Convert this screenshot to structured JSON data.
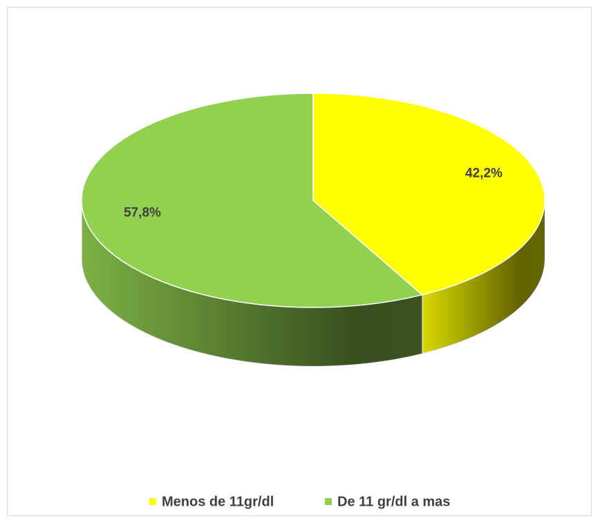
{
  "chart_data": {
    "type": "pie",
    "categories": [
      "Menos de 11gr/dl",
      "De 11 gr/dl a mas"
    ],
    "values": [
      42.2,
      57.8
    ],
    "value_labels": [
      "42,2%",
      "57,8%"
    ],
    "colors": [
      "#ffff00",
      "#92d050"
    ],
    "legend": "bottom"
  }
}
